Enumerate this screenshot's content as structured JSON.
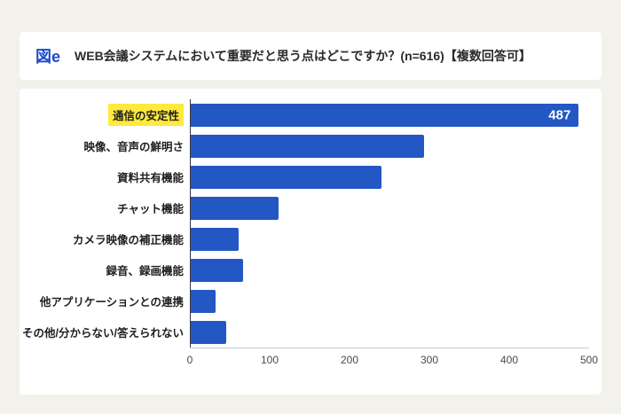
{
  "header": {
    "tag": "図e",
    "title": "WEB会議システムにおいて重要だと思う点はどこですか？(n=616)【複数回答可】"
  },
  "colors": {
    "bar": "#2257c4",
    "highlight": "#ffe93c",
    "accent_blue": "#1d49c8",
    "page_bg": "#f2f1ec"
  },
  "chart_data": {
    "type": "bar",
    "orientation": "horizontal",
    "title": "WEB会議システムにおいて重要だと思う点はどこですか？(n=616)【複数回答可】",
    "categories": [
      "通信の安定性",
      "映像、音声の鮮明さ",
      "資料共有機能",
      "チャット機能",
      "カメラ映像の補正機能",
      "録音、録画機能",
      "他アプリケーションとの連携",
      "その他/分からない/答えられない"
    ],
    "values": [
      487,
      293,
      239,
      110,
      60,
      66,
      31,
      45
    ],
    "value_labels_shown_for": [
      0
    ],
    "highlight_index": 0,
    "xlim": [
      0,
      500
    ],
    "xticks": [
      0,
      100,
      200,
      300,
      400,
      500
    ],
    "xlabel": "",
    "ylabel": "",
    "grid": false,
    "legend": "none"
  }
}
